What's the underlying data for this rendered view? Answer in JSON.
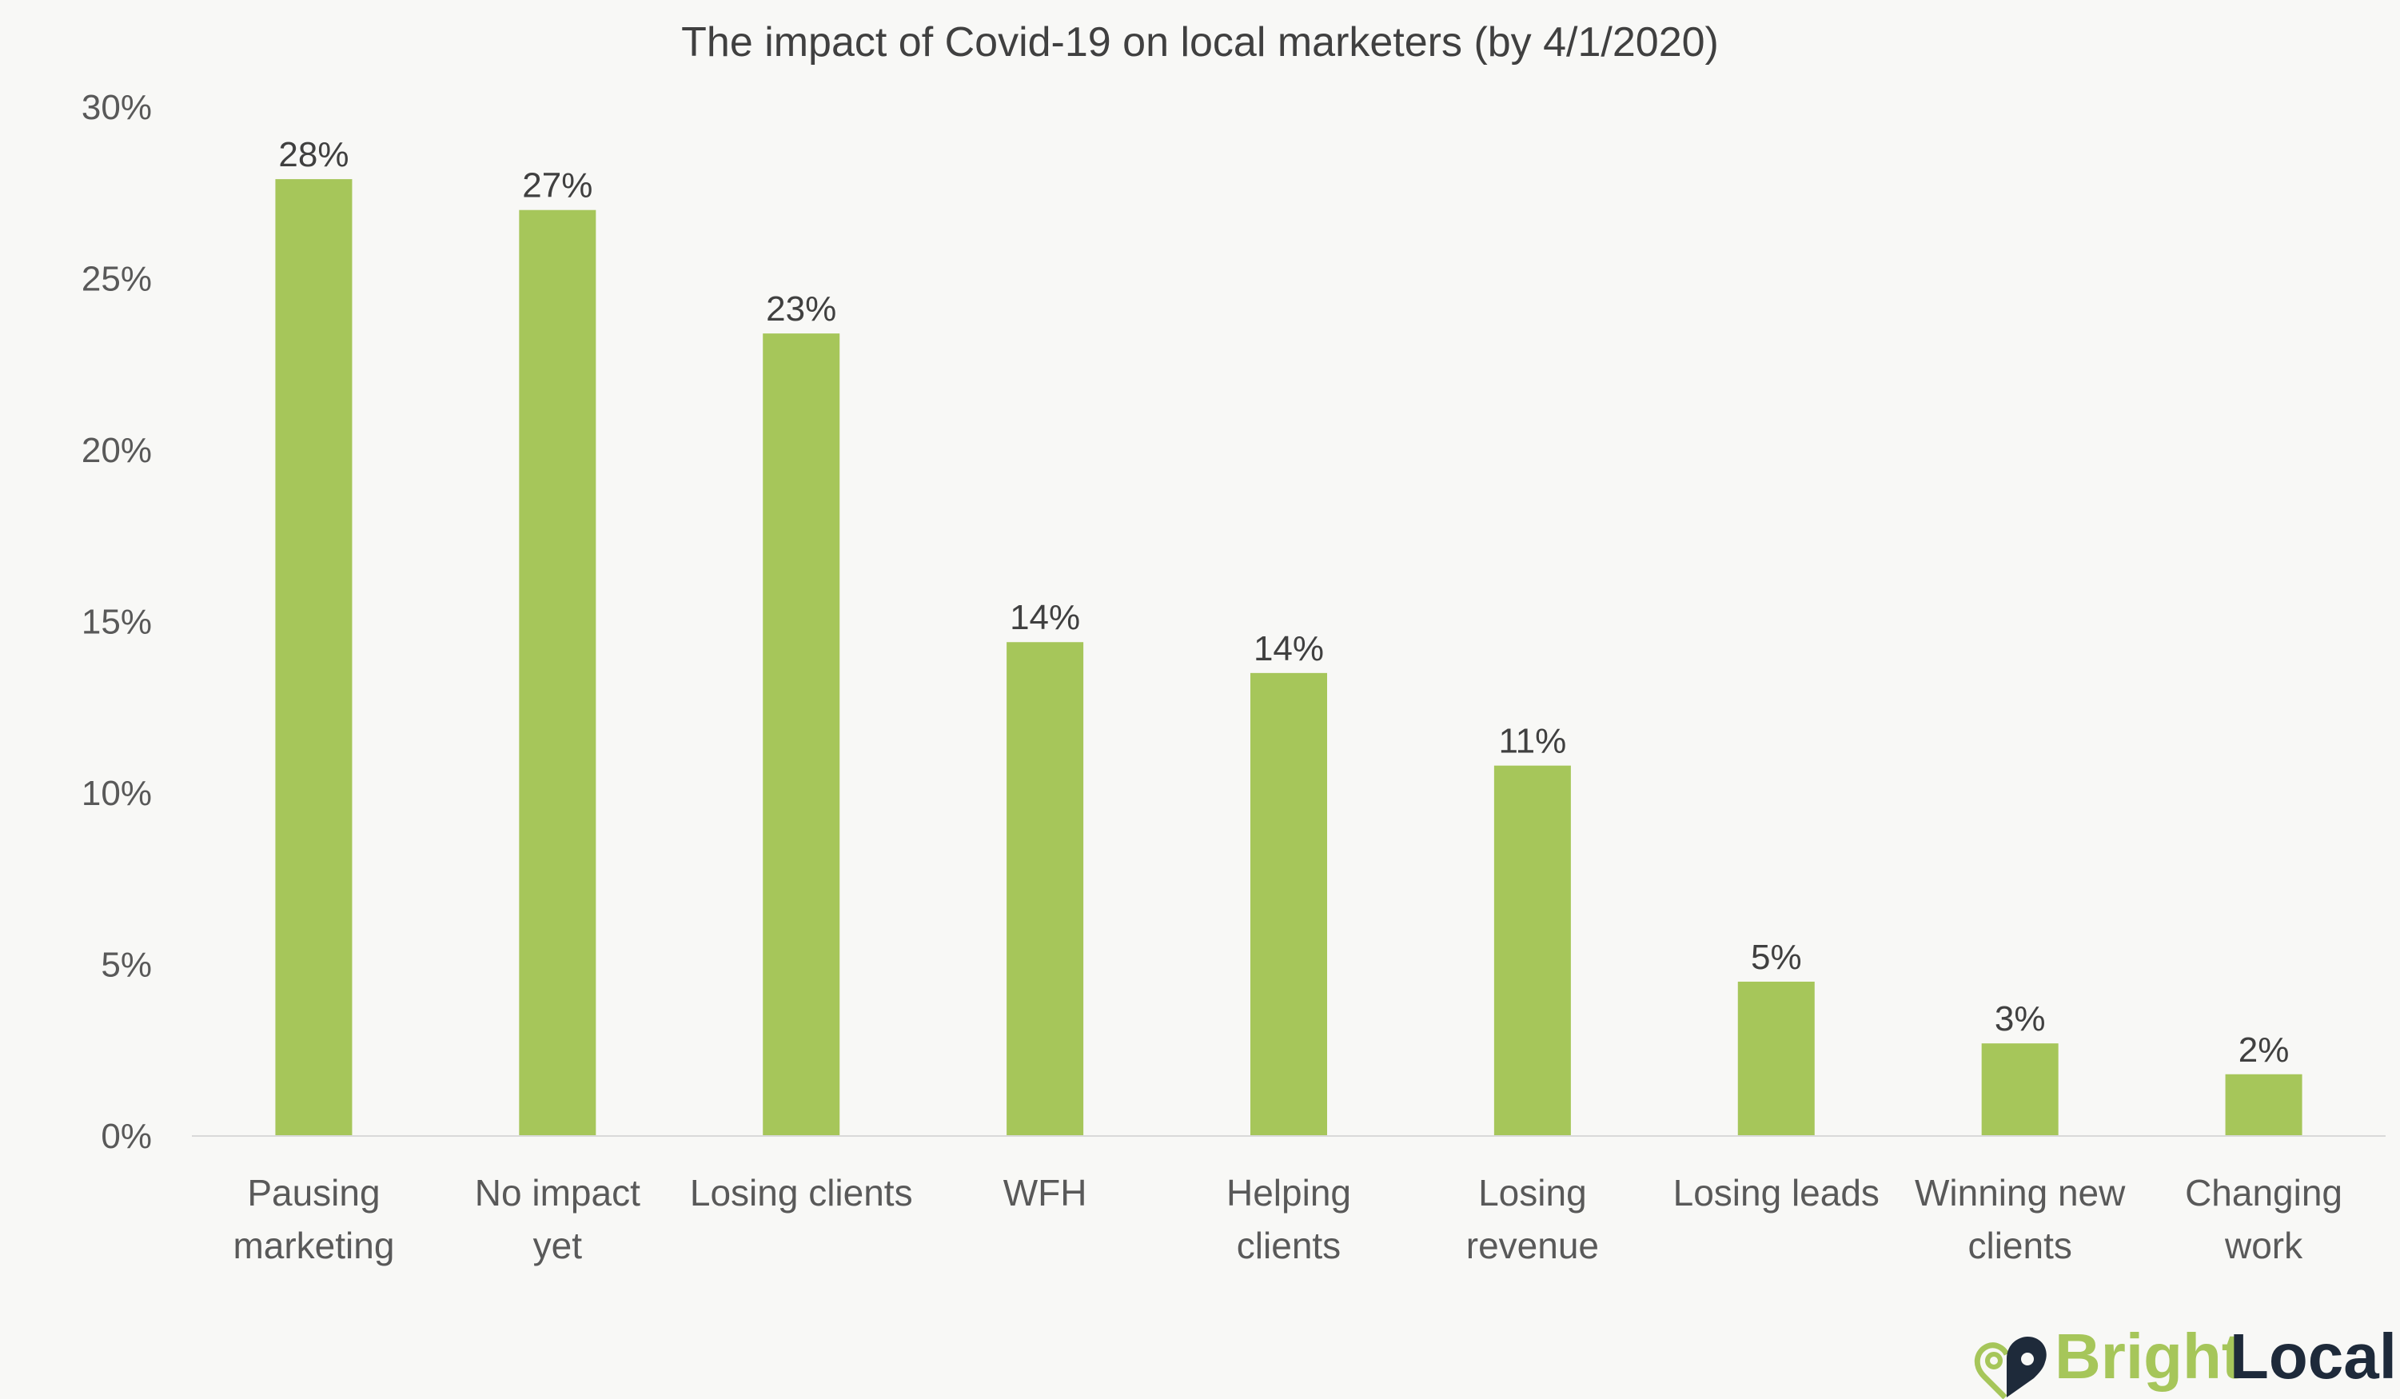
{
  "chart_data": {
    "type": "bar",
    "title": "The impact of Covid-19 on local marketers (by 4/1/2020)",
    "xlabel": "",
    "ylabel": "",
    "ylim": [
      0,
      30
    ],
    "yticks": [
      "0%",
      "5%",
      "10%",
      "15%",
      "20%",
      "25%",
      "30%"
    ],
    "grid": false,
    "legend": "none",
    "categories": [
      [
        "Pausing",
        "marketing"
      ],
      [
        "No impact",
        "yet"
      ],
      [
        "Losing clients"
      ],
      [
        "WFH"
      ],
      [
        "Helping",
        "clients"
      ],
      [
        "Losing",
        "revenue"
      ],
      [
        "Losing leads"
      ],
      [
        "Winning new",
        "clients"
      ],
      [
        "Changing",
        "work"
      ]
    ],
    "values": [
      27.9,
      27.0,
      23.4,
      14.4,
      13.5,
      10.8,
      4.5,
      2.7,
      1.8
    ],
    "data_labels": [
      "28%",
      "27%",
      "23%",
      "14%",
      "14%",
      "11%",
      "5%",
      "3%",
      "2%"
    ],
    "bar_color": "#a6c65a"
  },
  "logo": {
    "part1": "Bright",
    "part2": "Local",
    "green": "#a6c65a",
    "navy": "#1e2a3a"
  }
}
